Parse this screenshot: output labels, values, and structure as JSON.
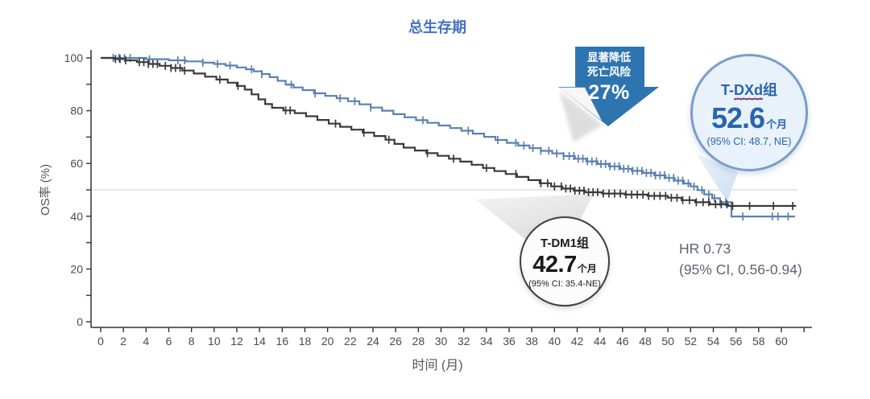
{
  "title": "总生存期",
  "arrow_callout": {
    "line1": "显著降低",
    "line2": "死亡风险",
    "value": "27%"
  },
  "tdxd_callout": {
    "group_prefix": "T-",
    "group_emph": "DXd",
    "group_suffix": "组",
    "median": "52.6",
    "unit": "个月",
    "ci": "(95% CI: 48.7, NE)"
  },
  "tdm1_callout": {
    "group": "T-DM1组",
    "median": "42.7",
    "unit": "个月",
    "ci": "(95% CI: 35.4-NE)"
  },
  "hr_annotation": {
    "line1": "HR 0.73",
    "line2": "(95% CI, 0.56-0.94)"
  },
  "colors": {
    "title_blue": "#4472c4",
    "arrow_blue": "#2e74b0",
    "tdxd_curve": "#5b80b2",
    "tdm1_curve": "#3a3a3a",
    "tdxd_text": "#2766ad",
    "axis": "#333333",
    "tick_label": "#4a4a4a",
    "reference_line": "#d9d9d9",
    "hr_text": "#5d6470"
  },
  "chart_data": {
    "type": "line",
    "subtype": "kaplan-meier-step",
    "title": "总生存期",
    "xlabel": "时间 (月)",
    "ylabel": "OS率 (%)",
    "xlim": [
      0,
      62
    ],
    "ylim": [
      0,
      100
    ],
    "x_ticks": [
      0,
      2,
      4,
      6,
      8,
      10,
      12,
      14,
      16,
      18,
      20,
      22,
      24,
      26,
      28,
      30,
      32,
      34,
      36,
      38,
      40,
      42,
      44,
      46,
      48,
      50,
      52,
      54,
      56,
      58,
      60
    ],
    "x_extra_unlabeled_tick": 62,
    "y_major_ticks": [
      0,
      20,
      40,
      60,
      80,
      100
    ],
    "y_minor_ticks": [
      10,
      30,
      50,
      70,
      90
    ],
    "reference_line_y": 50,
    "grid": false,
    "legend_position": "none",
    "series": [
      {
        "name": "T-DXd",
        "color": "#5b80b2",
        "median_months": 52.6,
        "median_ci": "48.7, NE",
        "steps": [
          [
            0,
            100
          ],
          [
            2.8,
            100
          ],
          [
            4,
            99.5
          ],
          [
            6,
            99.1
          ],
          [
            7.5,
            98.7
          ],
          [
            9,
            98.2
          ],
          [
            10,
            97.7
          ],
          [
            11,
            97.1
          ],
          [
            12,
            96.4
          ],
          [
            12.8,
            95.7
          ],
          [
            13.5,
            94.9
          ],
          [
            14.2,
            93.9
          ],
          [
            14.9,
            92.7
          ],
          [
            15.6,
            91.3
          ],
          [
            16.3,
            89.9
          ],
          [
            17,
            88.8
          ],
          [
            17.8,
            87.8
          ],
          [
            18.8,
            86.6
          ],
          [
            19.8,
            85.6
          ],
          [
            20.8,
            84.7
          ],
          [
            21.8,
            83.6
          ],
          [
            22.8,
            82.4
          ],
          [
            23.8,
            81.2
          ],
          [
            24.8,
            80
          ],
          [
            25.8,
            78.7
          ],
          [
            26.8,
            77.5
          ],
          [
            27.8,
            76.4
          ],
          [
            28.8,
            75.4
          ],
          [
            29.8,
            74.4
          ],
          [
            30.8,
            73.4
          ],
          [
            31.8,
            72.4
          ],
          [
            32.8,
            71.3
          ],
          [
            33.8,
            70.1
          ],
          [
            34.8,
            68.9
          ],
          [
            35.8,
            67.8
          ],
          [
            36.8,
            66.8
          ],
          [
            37.8,
            65.8
          ],
          [
            38.8,
            64.8
          ],
          [
            39.8,
            63.8
          ],
          [
            40.8,
            62.8
          ],
          [
            41.8,
            61.8
          ],
          [
            42.8,
            60.8
          ],
          [
            43.8,
            59.8
          ],
          [
            44.8,
            58.9
          ],
          [
            45.8,
            58
          ],
          [
            46.8,
            57.2
          ],
          [
            47.8,
            56.4
          ],
          [
            48.8,
            55.5
          ],
          [
            49.8,
            54.5
          ],
          [
            50.6,
            53.5
          ],
          [
            51.4,
            52.4
          ],
          [
            52,
            51.3
          ],
          [
            52.6,
            49.9
          ],
          [
            53.2,
            48.3
          ],
          [
            53.9,
            46.8
          ],
          [
            54.6,
            45.3
          ],
          [
            55.6,
            39.9
          ],
          [
            61.2,
            39.9
          ]
        ],
        "censor_times": [
          1.1,
          1.6,
          2.1,
          2.6,
          4.3,
          6.8,
          7.4,
          9.0,
          10.3,
          11.4,
          13.3,
          14.2,
          16.8,
          18.9,
          21.1,
          22.4,
          23.8,
          28.4,
          32.4,
          35.0,
          36.6,
          37.3,
          38.1,
          38.8,
          39.5,
          40.2,
          40.8,
          41.3,
          41.7,
          42.1,
          42.5,
          42.9,
          43.3,
          43.7,
          44.1,
          44.5,
          44.9,
          45.3,
          45.7,
          46.1,
          46.5,
          46.9,
          47.3,
          47.7,
          48.1,
          48.5,
          48.9,
          49.3,
          49.7,
          50.1,
          50.5,
          50.9,
          51.3,
          51.8,
          52.3,
          53.0,
          53.6,
          54.1,
          54.6,
          55.1,
          56.6,
          59.2,
          59.7,
          60.6
        ]
      },
      {
        "name": "T-DM1",
        "color": "#3a3a3a",
        "median_months": 42.7,
        "median_ci": "35.4-NE",
        "steps": [
          [
            0,
            100
          ],
          [
            1.2,
            99.6
          ],
          [
            2.2,
            99.1
          ],
          [
            3.2,
            98.4
          ],
          [
            4.2,
            97.7
          ],
          [
            5.2,
            97
          ],
          [
            6.2,
            96.2
          ],
          [
            7.2,
            95.2
          ],
          [
            8.2,
            94.1
          ],
          [
            9.2,
            92.9
          ],
          [
            10.2,
            91.8
          ],
          [
            11.2,
            90.6
          ],
          [
            12,
            89.4
          ],
          [
            12.7,
            88
          ],
          [
            13.3,
            86.2
          ],
          [
            13.9,
            84.3
          ],
          [
            14.5,
            82.5
          ],
          [
            15.1,
            81.1
          ],
          [
            16.1,
            80.1
          ],
          [
            17.1,
            79.1
          ],
          [
            18.1,
            77.9
          ],
          [
            19.1,
            76.5
          ],
          [
            20.1,
            75.1
          ],
          [
            21.1,
            73.9
          ],
          [
            22.1,
            72.8
          ],
          [
            23.1,
            71.7
          ],
          [
            24.1,
            70.4
          ],
          [
            25.1,
            69
          ],
          [
            25.9,
            67.4
          ],
          [
            26.7,
            66
          ],
          [
            27.7,
            64.9
          ],
          [
            28.7,
            63.9
          ],
          [
            29.7,
            62.9
          ],
          [
            30.7,
            61.8
          ],
          [
            31.7,
            60.7
          ],
          [
            32.7,
            59.5
          ],
          [
            33.7,
            58.3
          ],
          [
            34.7,
            57.1
          ],
          [
            35.7,
            56
          ],
          [
            36.7,
            54.9
          ],
          [
            37.7,
            53.7
          ],
          [
            38.7,
            52.5
          ],
          [
            39.7,
            51.3
          ],
          [
            40.7,
            50.5
          ],
          [
            41.7,
            49.7
          ],
          [
            42.7,
            49.1
          ],
          [
            44.2,
            48.6
          ],
          [
            46.2,
            48.2
          ],
          [
            48.2,
            47.7
          ],
          [
            50,
            47
          ],
          [
            51.2,
            46.1
          ],
          [
            52.4,
            45.3
          ],
          [
            53.7,
            44.5
          ],
          [
            55.3,
            43.9
          ],
          [
            61.3,
            43.9
          ]
        ],
        "censor_times": [
          1.3,
          1.7,
          2.2,
          3.4,
          3.8,
          4.2,
          4.6,
          5.0,
          5.7,
          6.2,
          6.6,
          7.0,
          7.4,
          10.5,
          12.1,
          16.3,
          16.7,
          20.7,
          23.2,
          25.4,
          28.8,
          31.1,
          34.0,
          36.6,
          38.8,
          39.4,
          40.0,
          40.6,
          41.0,
          41.4,
          41.8,
          42.2,
          42.6,
          43.0,
          43.4,
          43.8,
          44.3,
          44.8,
          45.3,
          45.8,
          46.3,
          46.8,
          47.3,
          47.8,
          48.3,
          48.8,
          49.3,
          49.8,
          50.3,
          50.8,
          51.3,
          51.9,
          52.5,
          53.1,
          53.6,
          54.2,
          54.7,
          55.2,
          55.7,
          57.2,
          59.3,
          61.0
        ]
      }
    ]
  }
}
